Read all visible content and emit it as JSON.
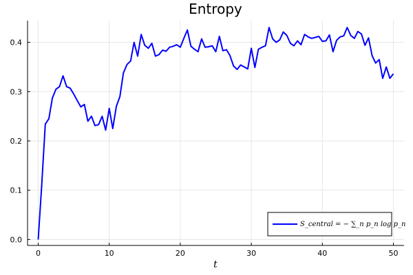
{
  "chart_data": {
    "type": "line",
    "title": "Entropy",
    "xlabel": "t",
    "ylabel": "",
    "xlim": [
      -1.5,
      51.5
    ],
    "ylim": [
      -0.012,
      0.444
    ],
    "x_ticks": [
      0,
      10,
      20,
      30,
      40,
      50
    ],
    "y_ticks": [
      0.0,
      0.1,
      0.2,
      0.3,
      0.4
    ],
    "x_tick_labels": [
      "0",
      "10",
      "20",
      "30",
      "40",
      "50"
    ],
    "y_tick_labels": [
      "0.0",
      "0.1",
      "0.2",
      "0.3",
      "0.4"
    ],
    "grid": true,
    "legend_position": "bottom-right",
    "series": [
      {
        "name": "S_central = − ∑_n p_n log p_n",
        "color": "#0000ff",
        "x": [
          0,
          0.5,
          1,
          1.5,
          2,
          2.5,
          3,
          3.5,
          4,
          4.5,
          5,
          5.5,
          6,
          6.5,
          7,
          7.5,
          8,
          8.5,
          9,
          9.5,
          10,
          10.5,
          11,
          11.5,
          12,
          12.5,
          13,
          13.5,
          14,
          14.5,
          15,
          15.5,
          16,
          16.5,
          17,
          17.5,
          18,
          18.5,
          19,
          19.5,
          20,
          20.5,
          21,
          21.5,
          22,
          22.5,
          23,
          23.5,
          24,
          24.5,
          25,
          25.5,
          26,
          26.5,
          27,
          27.5,
          28,
          28.5,
          29,
          29.5,
          30,
          30.5,
          31,
          31.5,
          32,
          32.5,
          33,
          33.5,
          34,
          34.5,
          35,
          35.5,
          36,
          36.5,
          37,
          37.5,
          38,
          38.5,
          39,
          39.5,
          40,
          40.5,
          41,
          41.5,
          42,
          42.5,
          43,
          43.5,
          44,
          44.5,
          45,
          45.5,
          46,
          46.5,
          47,
          47.5,
          48,
          48.5,
          49,
          49.5,
          50
        ],
        "values": [
          0.0,
          0.11,
          0.234,
          0.245,
          0.287,
          0.305,
          0.31,
          0.332,
          0.31,
          0.307,
          0.295,
          0.282,
          0.269,
          0.274,
          0.24,
          0.25,
          0.231,
          0.233,
          0.25,
          0.222,
          0.266,
          0.225,
          0.27,
          0.29,
          0.338,
          0.355,
          0.362,
          0.4,
          0.372,
          0.416,
          0.394,
          0.388,
          0.398,
          0.372,
          0.375,
          0.384,
          0.382,
          0.39,
          0.392,
          0.395,
          0.39,
          0.408,
          0.425,
          0.392,
          0.386,
          0.381,
          0.407,
          0.39,
          0.391,
          0.393,
          0.381,
          0.412,
          0.383,
          0.385,
          0.373,
          0.352,
          0.345,
          0.354,
          0.35,
          0.346,
          0.388,
          0.349,
          0.386,
          0.39,
          0.393,
          0.43,
          0.407,
          0.4,
          0.405,
          0.421,
          0.414,
          0.398,
          0.393,
          0.403,
          0.395,
          0.416,
          0.411,
          0.408,
          0.41,
          0.412,
          0.402,
          0.403,
          0.415,
          0.381,
          0.404,
          0.411,
          0.413,
          0.43,
          0.414,
          0.408,
          0.422,
          0.417,
          0.394,
          0.409,
          0.373,
          0.358,
          0.365,
          0.327,
          0.35,
          0.327,
          0.336
        ]
      }
    ]
  }
}
